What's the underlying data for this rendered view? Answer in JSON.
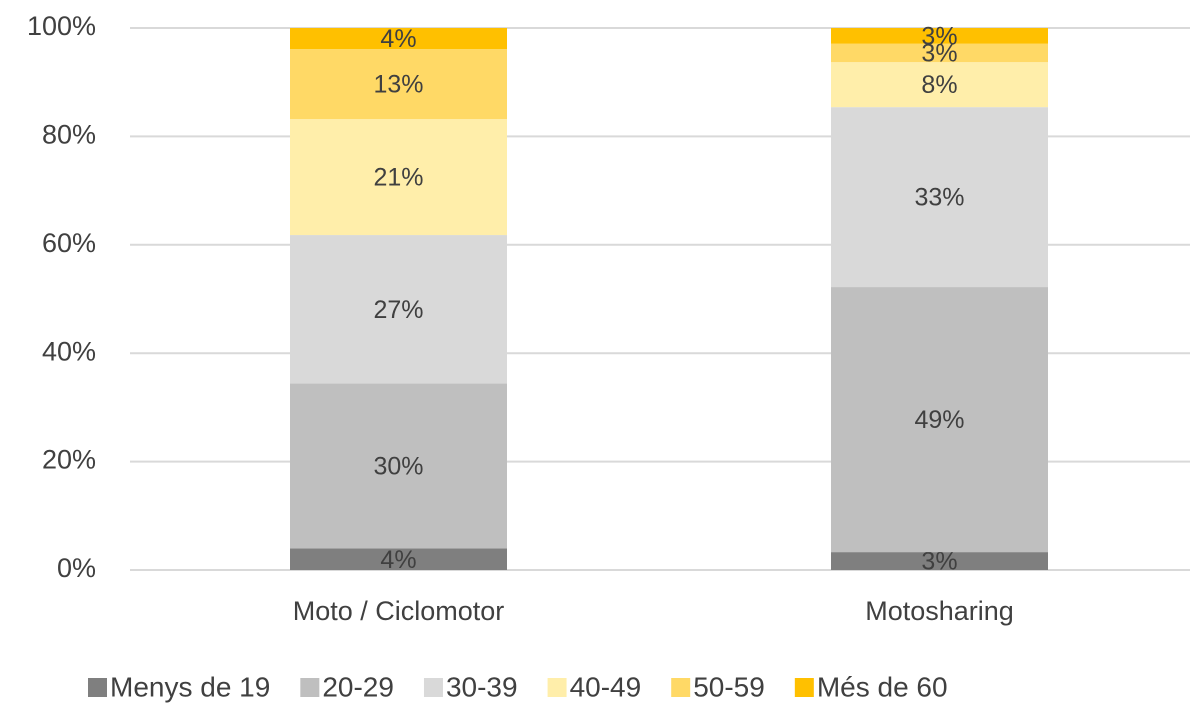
{
  "chart_data": {
    "type": "bar",
    "stacked": true,
    "categories": [
      "Moto / Ciclomotor",
      "Motosharing"
    ],
    "series": [
      {
        "name": "Menys de 19",
        "color": "#7f7f7f",
        "values": [
          4.0,
          3.3
        ],
        "value_labels": [
          "4%",
          "3%"
        ]
      },
      {
        "name": "20-29",
        "color": "#bfbfbf",
        "values": [
          30.4,
          48.9
        ],
        "value_labels": [
          "30%",
          "49%"
        ]
      },
      {
        "name": "30-39",
        "color": "#d9d9d9",
        "values": [
          27.4,
          33.2
        ],
        "value_labels": [
          "27%",
          "33%"
        ]
      },
      {
        "name": "40-49",
        "color": "#ffeeaa",
        "values": [
          21.4,
          8.3
        ],
        "value_labels": [
          "21%",
          "8%"
        ]
      },
      {
        "name": "50-59",
        "color": "#ffd966",
        "values": [
          12.9,
          3.4
        ],
        "value_labels": [
          "13%",
          "3%"
        ]
      },
      {
        "name": "Més de 60",
        "color": "#ffc000",
        "values": [
          3.9,
          2.9
        ],
        "value_labels": [
          "4%",
          "3%"
        ]
      }
    ],
    "ylim": [
      0,
      100
    ],
    "yticks": [
      {
        "value": 0,
        "label": "0%"
      },
      {
        "value": 20,
        "label": "20%"
      },
      {
        "value": 40,
        "label": "40%"
      },
      {
        "value": 60,
        "label": "60%"
      },
      {
        "value": 80,
        "label": "80%"
      },
      {
        "value": 100,
        "label": "100%"
      }
    ],
    "grid": true,
    "legend": "bottom"
  }
}
